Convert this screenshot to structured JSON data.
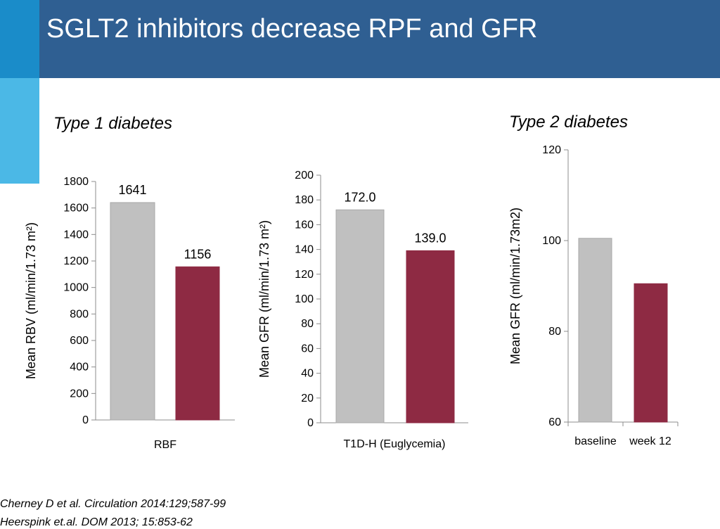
{
  "slide": {
    "title": "SGLT2 inhibitors decrease RPF and GFR",
    "section_t1": "Type 1 diabetes",
    "section_t2": "Type 2 diabetes",
    "citations": [
      "Cherney D et al. Circulation 2014:129;587-99",
      "Heerspink et.al. DOM 2013; 15:853-62"
    ]
  },
  "colors": {
    "header": "#2f5f92",
    "accent_dark": "#1a8cc9",
    "accent_light": "#4bb8e6",
    "bar_baseline": "#c0c0c0",
    "bar_treatment": "#8e2a43",
    "axis": "#8c8c8c"
  },
  "chart_data": [
    {
      "type": "bar",
      "categories": [
        "RBF"
      ],
      "series": [
        {
          "values": [
            1641
          ],
          "labels": [
            "1641"
          ]
        },
        {
          "values": [
            1156
          ],
          "labels": [
            "1156"
          ]
        }
      ],
      "ylabel": "Mean RBV (ml/min/1.73 m²)",
      "ylim": [
        0,
        1800
      ],
      "yticks": [
        0,
        200,
        400,
        600,
        800,
        1000,
        1200,
        1400,
        1600,
        1800
      ],
      "grid": false,
      "legend": "none"
    },
    {
      "type": "bar",
      "categories": [
        "T1D-H (Euglycemia)"
      ],
      "series": [
        {
          "values": [
            172.0
          ],
          "labels": [
            "172.0"
          ]
        },
        {
          "values": [
            139.0
          ],
          "labels": [
            "139.0"
          ]
        }
      ],
      "ylabel": "Mean GFR (ml/min/1.73 m²)",
      "ylim": [
        0,
        200
      ],
      "yticks": [
        0,
        20,
        40,
        60,
        80,
        100,
        120,
        140,
        160,
        180,
        200
      ],
      "grid": false,
      "legend": "none"
    },
    {
      "type": "bar",
      "categories": [
        "baseline",
        "week 12"
      ],
      "values": [
        100.5,
        90.5
      ],
      "ylabel": "Mean GFR (ml/min/1.73m2)",
      "ylim": [
        60,
        120
      ],
      "yticks": [
        60,
        80,
        100,
        120
      ],
      "grid": false,
      "legend": "none"
    }
  ]
}
